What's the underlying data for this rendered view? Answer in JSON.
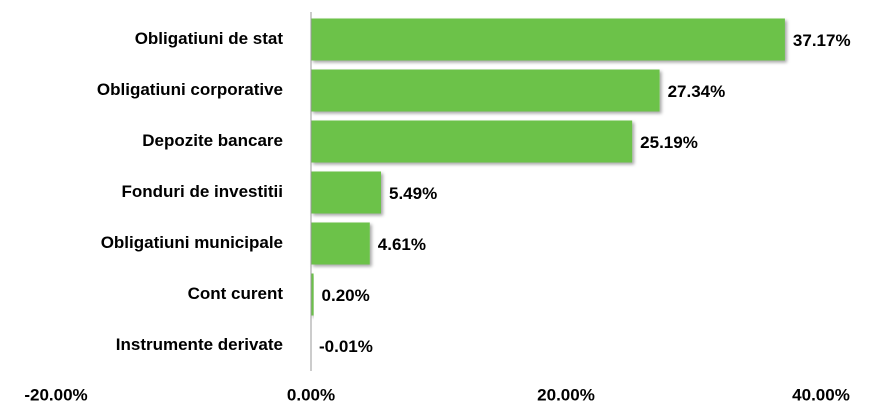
{
  "chart_data": {
    "type": "bar",
    "orientation": "horizontal",
    "categories": [
      "Obligatiuni de stat",
      "Obligatiuni corporative",
      "Depozite bancare",
      "Fonduri de investitii",
      "Obligatiuni municipale",
      "Cont curent",
      "Instrumente derivate"
    ],
    "values": [
      37.17,
      27.34,
      25.19,
      5.49,
      4.61,
      0.2,
      -0.01
    ],
    "value_labels": [
      "37.17%",
      "27.34%",
      "25.19%",
      "5.49%",
      "4.61%",
      "0.20%",
      "-0.01%"
    ],
    "color": "#6cc24a",
    "xlim": [
      -20,
      40
    ],
    "xticks": [
      {
        "value": -20,
        "label": "-20.00%"
      },
      {
        "value": 0,
        "label": "0.00%"
      },
      {
        "value": 20,
        "label": "20.00%"
      },
      {
        "value": 40,
        "label": "40.00%"
      }
    ]
  }
}
